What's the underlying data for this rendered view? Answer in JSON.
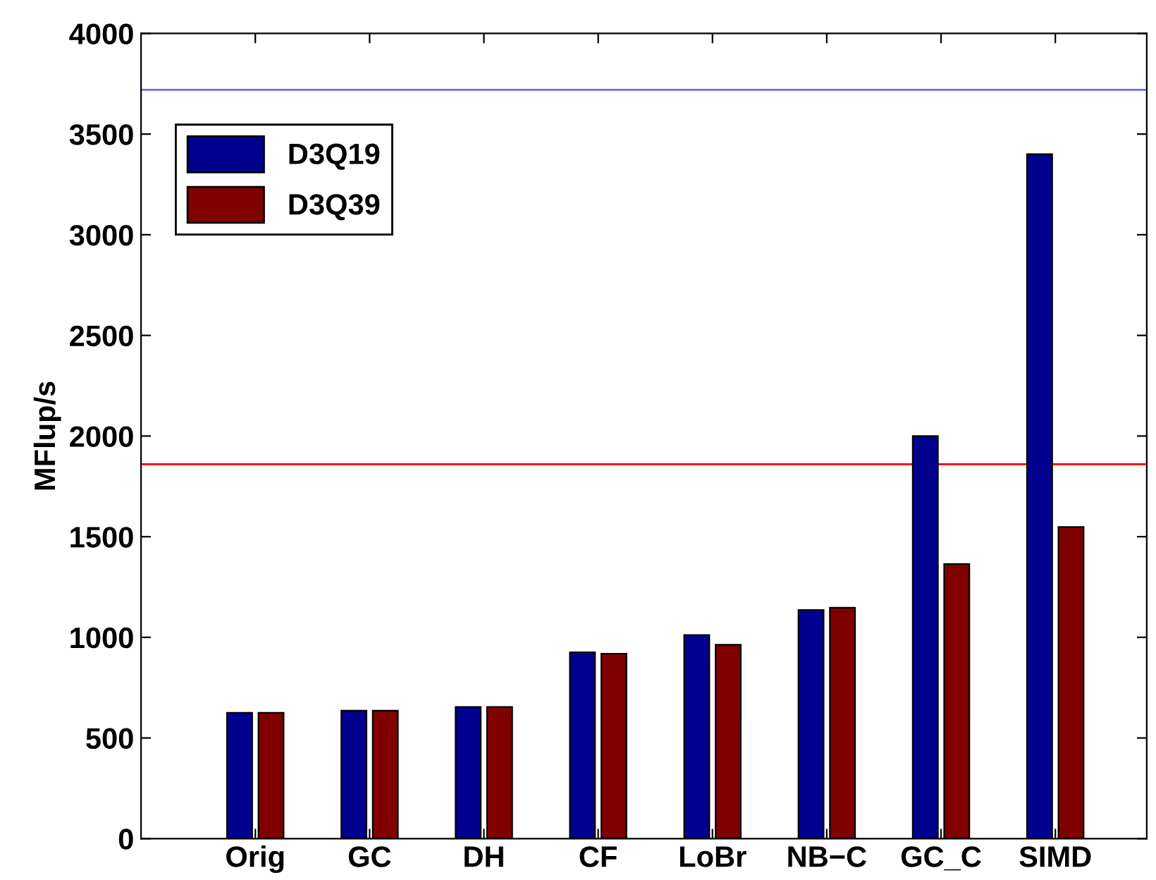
{
  "chart_data": {
    "type": "bar",
    "ylabel": "MFlup/s",
    "categories": [
      "Orig",
      "GC",
      "DH",
      "CF",
      "LoBr",
      "NB−C",
      "GC_C",
      "SIMD"
    ],
    "series": [
      {
        "name": "D3Q19",
        "color": "#00008f",
        "values": [
          625,
          636,
          654,
          926,
          1011,
          1136,
          2000,
          3400
        ]
      },
      {
        "name": "D3Q39",
        "color": "#800000",
        "values": [
          625,
          636,
          654,
          919,
          963,
          1147,
          1364,
          1548
        ]
      }
    ],
    "ylim": [
      0,
      4000
    ],
    "yticks": [
      0,
      500,
      1000,
      1500,
      2000,
      2500,
      3000,
      3500,
      4000
    ],
    "ref_lines": [
      {
        "axis": "y",
        "value": 3720,
        "color": "#6b6bff"
      },
      {
        "axis": "y",
        "value": 1860,
        "color": "#ff0000"
      }
    ],
    "grid": false,
    "legend": "top left"
  }
}
